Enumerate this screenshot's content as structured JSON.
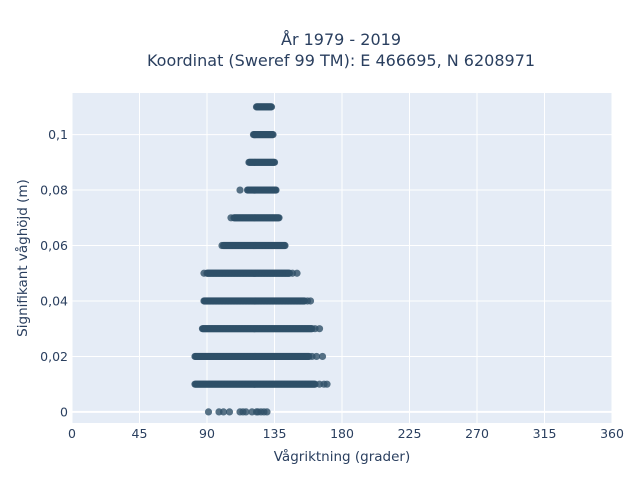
{
  "chart_data": {
    "type": "scatter",
    "title_lines": [
      "År 1979 - 2019",
      "Koordinat (Sweref 99 TM): E 466695, N 6208971"
    ],
    "xlabel": "Vågriktning (grader)",
    "ylabel": "Signifikant våghöjd (m)",
    "xlim": [
      0,
      360
    ],
    "ylim": [
      -0.004,
      0.115
    ],
    "xticks": [
      0,
      45,
      90,
      135,
      180,
      225,
      270,
      315,
      360
    ],
    "xtick_labels": [
      "0",
      "45",
      "90",
      "135",
      "180",
      "225",
      "270",
      "315",
      "360"
    ],
    "yticks": [
      0,
      0.02,
      0.04,
      0.06,
      0.08,
      0.1
    ],
    "ytick_labels": [
      "0",
      "0,02",
      "0,04",
      "0,06",
      "0,08",
      "0,1"
    ],
    "grid": true,
    "plot_background": "#e5ecf6",
    "marker_color": "#2f5068",
    "series": [
      {
        "bands": [
          {
            "y": 0.0,
            "dense": [],
            "points": [
              91,
              98,
              101,
              105,
              112,
              114,
              116,
              120,
              123,
              124,
              126,
              128,
              130
            ]
          },
          {
            "y": 0.01,
            "dense": [
              82,
              162
            ],
            "points": [
              165,
              168,
              170
            ]
          },
          {
            "y": 0.02,
            "dense": [
              82,
              158
            ],
            "points": [
              160,
              163,
              167
            ]
          },
          {
            "y": 0.03,
            "dense": [
              87,
              160
            ],
            "points": [
              162,
              165
            ]
          },
          {
            "y": 0.04,
            "dense": [
              88,
              155
            ],
            "points": [
              157,
              159
            ]
          },
          {
            "y": 0.05,
            "dense": [
              90,
              145
            ],
            "points": [
              88,
              147,
              150
            ]
          },
          {
            "y": 0.06,
            "dense": [
              101,
              142
            ],
            "points": [
              100
            ]
          },
          {
            "y": 0.07,
            "dense": [
              108,
              138
            ],
            "points": [
              106
            ]
          },
          {
            "y": 0.08,
            "dense": [
              117,
              136
            ],
            "points": [
              112
            ]
          },
          {
            "y": 0.09,
            "dense": [
              118,
              135
            ],
            "points": []
          },
          {
            "y": 0.1,
            "dense": [
              121,
              134
            ],
            "points": []
          },
          {
            "y": 0.11,
            "dense": [
              123,
              133
            ],
            "points": []
          }
        ]
      }
    ]
  }
}
